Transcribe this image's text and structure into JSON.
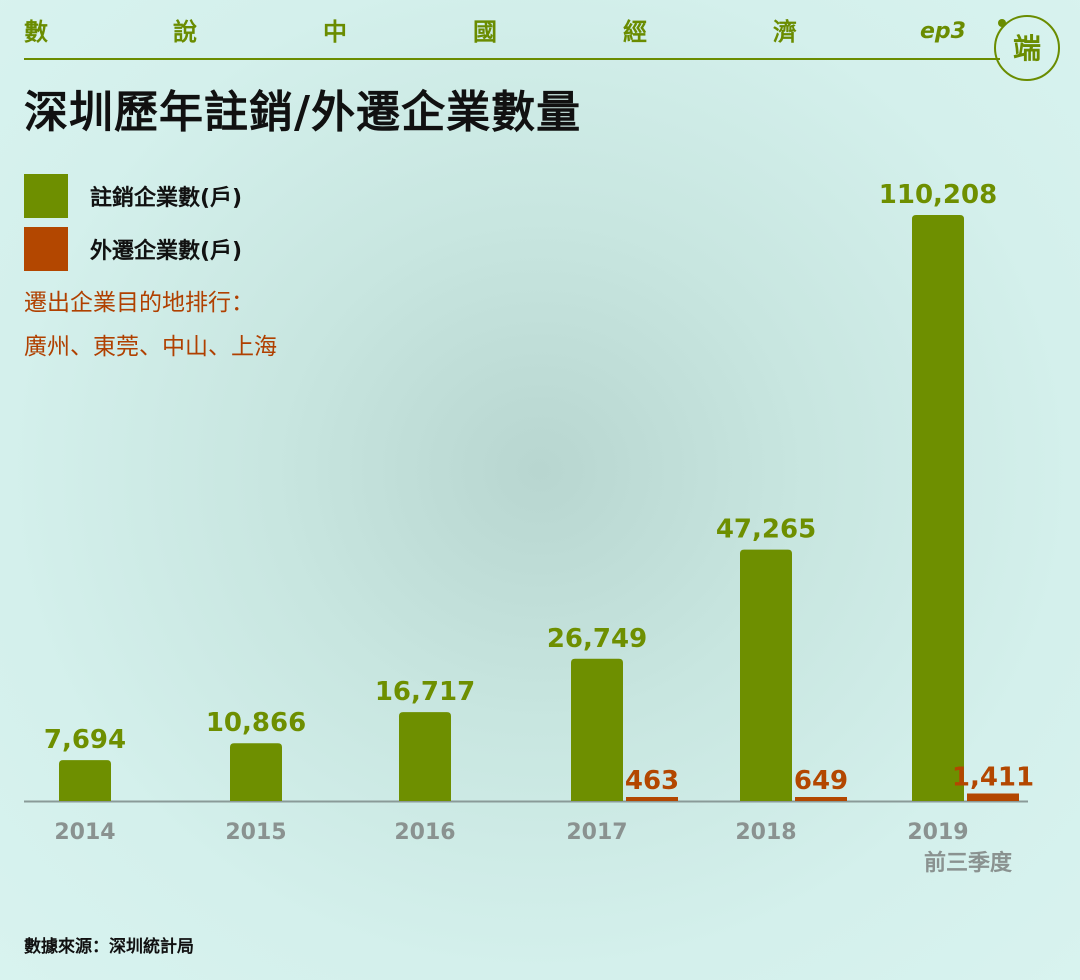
{
  "header": {
    "series_chars": [
      "數",
      "說",
      "中",
      "國",
      "經",
      "濟"
    ],
    "episode": "ep3",
    "logo_text": "端"
  },
  "colors": {
    "green": "#6e8f00",
    "rust": "#b34700",
    "axis": "#8a9a98",
    "tick_text": "#8a9290"
  },
  "annotation": {
    "line1": "遷出企業目的地排行：",
    "line2": "廣州、東莞、中山、上海"
  },
  "source": "數據來源：深圳統計局",
  "chart_data": {
    "type": "bar",
    "title": "深圳歷年註銷/外遷企業數量",
    "categories": [
      {
        "line1": "2014",
        "line2": ""
      },
      {
        "line1": "2015",
        "line2": ""
      },
      {
        "line1": "2016",
        "line2": ""
      },
      {
        "line1": "2017",
        "line2": ""
      },
      {
        "line1": "2018",
        "line2": ""
      },
      {
        "line1": "2019",
        "line2": "前三季度"
      }
    ],
    "series": [
      {
        "name": "註銷企業數(戶)",
        "values": [
          7694,
          10866,
          16717,
          26749,
          47265,
          110208
        ],
        "labels": [
          "7,694",
          "10,866",
          "16,717",
          "26,749",
          "47,265",
          "110,208"
        ]
      },
      {
        "name": "外遷企業數(戶)",
        "values": [
          null,
          null,
          null,
          463,
          649,
          1411
        ],
        "labels": [
          "",
          "",
          "",
          "463",
          "649",
          "1,411"
        ]
      }
    ],
    "ylim": [
      0,
      110208
    ],
    "grid": false,
    "legend": "top-left"
  }
}
